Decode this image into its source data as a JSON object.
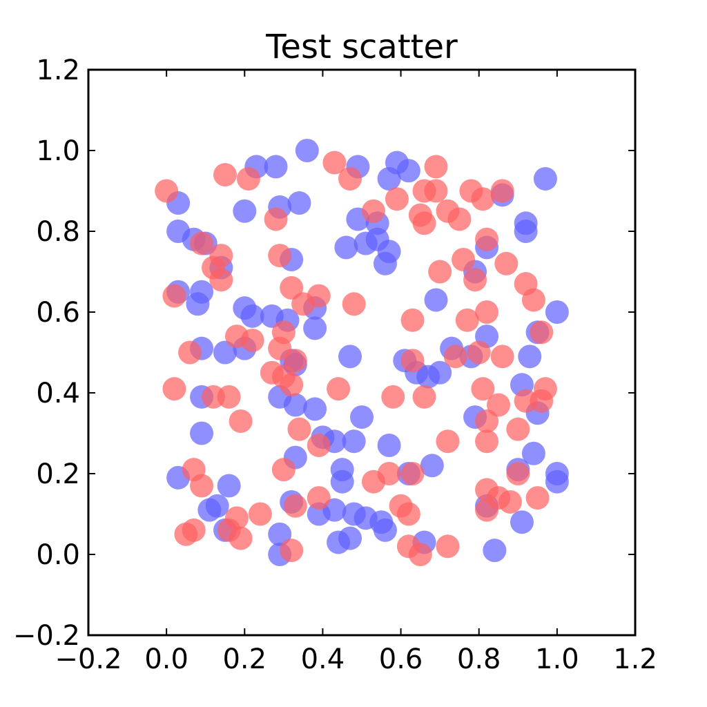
{
  "chart_data": {
    "type": "scatter",
    "title": "Test scatter",
    "xlabel": "",
    "ylabel": "",
    "xlim": [
      -0.2,
      1.2
    ],
    "ylim": [
      -0.2,
      1.2
    ],
    "xticks": [
      -0.2,
      0.0,
      0.2,
      0.4,
      0.6,
      0.8,
      1.0,
      1.2
    ],
    "yticks": [
      -0.2,
      0.0,
      0.2,
      0.4,
      0.6,
      0.8,
      1.0,
      1.2
    ],
    "xtick_labels": [
      "−0.2",
      "0.0",
      "0.2",
      "0.4",
      "0.6",
      "0.8",
      "1.0",
      "1.2"
    ],
    "ytick_labels": [
      "−0.2",
      "0.0",
      "0.2",
      "0.4",
      "0.6",
      "0.8",
      "1.0",
      "1.2"
    ],
    "grid": false,
    "legend": "none",
    "series": [
      {
        "color": "#6060ff",
        "alpha": 0.7,
        "points": [
          [
            0.36,
            1.0
          ],
          [
            0.23,
            0.96
          ],
          [
            0.28,
            0.96
          ],
          [
            0.49,
            0.96
          ],
          [
            0.59,
            0.97
          ],
          [
            0.62,
            0.95
          ],
          [
            0.57,
            0.93
          ],
          [
            0.97,
            0.93
          ],
          [
            0.03,
            0.87
          ],
          [
            0.29,
            0.86
          ],
          [
            0.34,
            0.87
          ],
          [
            0.2,
            0.85
          ],
          [
            0.86,
            0.89
          ],
          [
            0.03,
            0.8
          ],
          [
            0.49,
            0.83
          ],
          [
            0.54,
            0.82
          ],
          [
            0.92,
            0.82
          ],
          [
            0.92,
            0.8
          ],
          [
            0.07,
            0.78
          ],
          [
            0.1,
            0.77
          ],
          [
            0.46,
            0.76
          ],
          [
            0.51,
            0.77
          ],
          [
            0.54,
            0.78
          ],
          [
            0.57,
            0.75
          ],
          [
            0.56,
            0.72
          ],
          [
            0.82,
            0.76
          ],
          [
            0.32,
            0.73
          ],
          [
            0.14,
            0.71
          ],
          [
            0.79,
            0.7
          ],
          [
            0.03,
            0.65
          ],
          [
            0.09,
            0.65
          ],
          [
            0.08,
            0.62
          ],
          [
            0.69,
            0.63
          ],
          [
            0.2,
            0.61
          ],
          [
            0.22,
            0.59
          ],
          [
            0.27,
            0.59
          ],
          [
            0.31,
            0.58
          ],
          [
            0.38,
            0.61
          ],
          [
            0.38,
            0.56
          ],
          [
            1.0,
            0.6
          ],
          [
            0.95,
            0.55
          ],
          [
            0.09,
            0.51
          ],
          [
            0.15,
            0.5
          ],
          [
            0.2,
            0.51
          ],
          [
            0.32,
            0.48
          ],
          [
            0.33,
            0.47
          ],
          [
            0.47,
            0.49
          ],
          [
            0.61,
            0.48
          ],
          [
            0.64,
            0.45
          ],
          [
            0.67,
            0.44
          ],
          [
            0.7,
            0.45
          ],
          [
            0.73,
            0.51
          ],
          [
            0.82,
            0.54
          ],
          [
            0.78,
            0.49
          ],
          [
            0.93,
            0.49
          ],
          [
            0.09,
            0.39
          ],
          [
            0.29,
            0.39
          ],
          [
            0.33,
            0.37
          ],
          [
            0.38,
            0.36
          ],
          [
            0.91,
            0.42
          ],
          [
            0.95,
            0.35
          ],
          [
            0.5,
            0.34
          ],
          [
            0.79,
            0.34
          ],
          [
            0.09,
            0.3
          ],
          [
            0.4,
            0.29
          ],
          [
            0.43,
            0.28
          ],
          [
            0.48,
            0.28
          ],
          [
            0.57,
            0.27
          ],
          [
            0.33,
            0.24
          ],
          [
            0.45,
            0.21
          ],
          [
            0.45,
            0.18
          ],
          [
            0.68,
            0.22
          ],
          [
            0.62,
            0.2
          ],
          [
            0.94,
            0.25
          ],
          [
            1.0,
            0.2
          ],
          [
            1.0,
            0.18
          ],
          [
            0.03,
            0.19
          ],
          [
            0.16,
            0.17
          ],
          [
            0.9,
            0.21
          ],
          [
            0.11,
            0.11
          ],
          [
            0.13,
            0.12
          ],
          [
            0.32,
            0.13
          ],
          [
            0.39,
            0.1
          ],
          [
            0.43,
            0.11
          ],
          [
            0.48,
            0.1
          ],
          [
            0.51,
            0.09
          ],
          [
            0.55,
            0.08
          ],
          [
            0.56,
            0.06
          ],
          [
            0.82,
            0.12
          ],
          [
            0.91,
            0.08
          ],
          [
            0.15,
            0.06
          ],
          [
            0.29,
            0.05
          ],
          [
            0.44,
            0.03
          ],
          [
            0.47,
            0.04
          ],
          [
            0.66,
            0.03
          ],
          [
            0.29,
            0.0
          ],
          [
            0.84,
            0.01
          ]
        ]
      },
      {
        "color": "#ff6060",
        "alpha": 0.7,
        "points": [
          [
            0.0,
            0.9
          ],
          [
            0.15,
            0.94
          ],
          [
            0.21,
            0.93
          ],
          [
            0.43,
            0.97
          ],
          [
            0.47,
            0.93
          ],
          [
            0.69,
            0.96
          ],
          [
            0.59,
            0.88
          ],
          [
            0.66,
            0.9
          ],
          [
            0.69,
            0.9
          ],
          [
            0.78,
            0.9
          ],
          [
            0.81,
            0.88
          ],
          [
            0.86,
            0.9
          ],
          [
            0.28,
            0.83
          ],
          [
            0.53,
            0.85
          ],
          [
            0.65,
            0.84
          ],
          [
            0.66,
            0.82
          ],
          [
            0.72,
            0.85
          ],
          [
            0.75,
            0.83
          ],
          [
            0.09,
            0.77
          ],
          [
            0.14,
            0.74
          ],
          [
            0.12,
            0.71
          ],
          [
            0.14,
            0.68
          ],
          [
            0.29,
            0.74
          ],
          [
            0.76,
            0.73
          ],
          [
            0.82,
            0.78
          ],
          [
            0.87,
            0.72
          ],
          [
            0.7,
            0.7
          ],
          [
            0.79,
            0.68
          ],
          [
            0.92,
            0.67
          ],
          [
            0.94,
            0.63
          ],
          [
            0.02,
            0.64
          ],
          [
            0.32,
            0.66
          ],
          [
            0.35,
            0.62
          ],
          [
            0.39,
            0.64
          ],
          [
            0.48,
            0.62
          ],
          [
            0.63,
            0.58
          ],
          [
            0.77,
            0.58
          ],
          [
            0.82,
            0.6
          ],
          [
            0.18,
            0.54
          ],
          [
            0.22,
            0.53
          ],
          [
            0.3,
            0.55
          ],
          [
            0.29,
            0.51
          ],
          [
            0.96,
            0.55
          ],
          [
            0.06,
            0.5
          ],
          [
            0.27,
            0.45
          ],
          [
            0.3,
            0.44
          ],
          [
            0.33,
            0.48
          ],
          [
            0.32,
            0.42
          ],
          [
            0.63,
            0.48
          ],
          [
            0.74,
            0.49
          ],
          [
            0.8,
            0.5
          ],
          [
            0.86,
            0.49
          ],
          [
            0.02,
            0.41
          ],
          [
            0.12,
            0.39
          ],
          [
            0.16,
            0.39
          ],
          [
            0.44,
            0.41
          ],
          [
            0.58,
            0.39
          ],
          [
            0.66,
            0.39
          ],
          [
            0.81,
            0.41
          ],
          [
            0.85,
            0.37
          ],
          [
            0.92,
            0.38
          ],
          [
            0.97,
            0.41
          ],
          [
            0.96,
            0.38
          ],
          [
            0.19,
            0.33
          ],
          [
            0.34,
            0.31
          ],
          [
            0.39,
            0.27
          ],
          [
            0.72,
            0.28
          ],
          [
            0.82,
            0.33
          ],
          [
            0.82,
            0.28
          ],
          [
            0.9,
            0.31
          ],
          [
            0.07,
            0.21
          ],
          [
            0.09,
            0.17
          ],
          [
            0.3,
            0.21
          ],
          [
            0.53,
            0.18
          ],
          [
            0.57,
            0.2
          ],
          [
            0.63,
            0.2
          ],
          [
            0.9,
            0.2
          ],
          [
            0.82,
            0.16
          ],
          [
            0.85,
            0.14
          ],
          [
            0.88,
            0.13
          ],
          [
            0.95,
            0.14
          ],
          [
            0.18,
            0.09
          ],
          [
            0.24,
            0.1
          ],
          [
            0.33,
            0.12
          ],
          [
            0.39,
            0.14
          ],
          [
            0.6,
            0.12
          ],
          [
            0.62,
            0.1
          ],
          [
            0.82,
            0.11
          ],
          [
            0.05,
            0.05
          ],
          [
            0.07,
            0.06
          ],
          [
            0.16,
            0.06
          ],
          [
            0.19,
            0.04
          ],
          [
            0.32,
            0.01
          ],
          [
            0.62,
            0.02
          ],
          [
            0.65,
            0.0
          ],
          [
            0.72,
            0.02
          ]
        ]
      }
    ]
  }
}
